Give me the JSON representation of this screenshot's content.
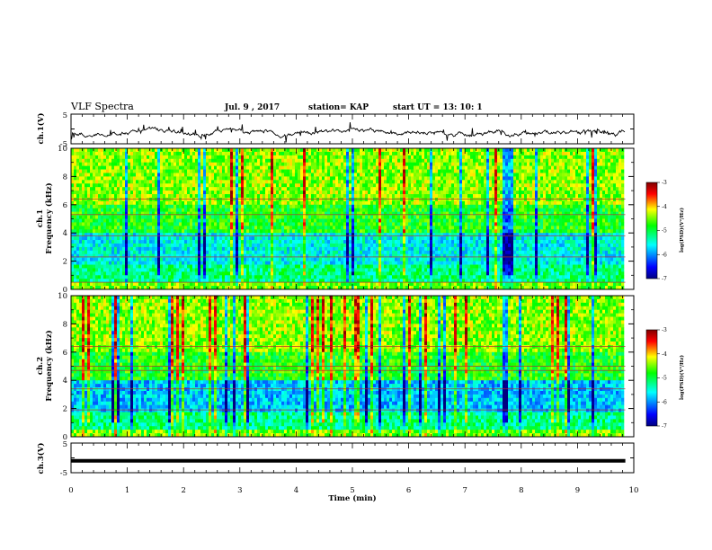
{
  "header": {
    "title": "VLF Spectra",
    "date": "Jul. 9 , 2017",
    "station": "station= KAP",
    "start": "start UT = 13: 10: 1"
  },
  "chart_data": [
    {
      "type": "line",
      "name": "ch1-waveform",
      "ylabel": "ch.1(V)",
      "ylim": [
        -5,
        5
      ],
      "yticks": [
        "5",
        "-5"
      ],
      "xlim": [
        0,
        10
      ],
      "xdata_end": 9.85
    },
    {
      "type": "heatmap",
      "name": "ch1-spectrogram",
      "ylabel": "ch.1\nFrequency (kHz)",
      "ylim": [
        0,
        10
      ],
      "yticks": [
        "0",
        "2",
        "4",
        "6",
        "8",
        "10"
      ],
      "xlim": [
        0,
        10
      ],
      "xdata_end": 9.85,
      "colorbar": {
        "label": "log(PSD)(V²/Hz)",
        "range": [
          -7,
          -3
        ],
        "ticks": [
          "-3",
          "-4",
          "-5",
          "-6",
          "-7"
        ]
      }
    },
    {
      "type": "heatmap",
      "name": "ch2-spectrogram",
      "ylabel": "ch.2\nFrequency (kHz)",
      "ylim": [
        0,
        10
      ],
      "yticks": [
        "0",
        "2",
        "4",
        "6",
        "8",
        "10"
      ],
      "xlim": [
        0,
        10
      ],
      "xdata_end": 9.85,
      "colorbar": {
        "label": "log(PSD)(V²/Hz)",
        "range": [
          -7,
          -3
        ],
        "ticks": [
          "-3",
          "-4",
          "-5",
          "-6",
          "-7"
        ]
      }
    },
    {
      "type": "line",
      "name": "ch3-waveform",
      "ylabel": "ch.3(V)",
      "ylim": [
        -5,
        5
      ],
      "yticks": [
        "5",
        "-5"
      ],
      "xlim": [
        0,
        10
      ],
      "xdata_end": 9.85,
      "value": -1
    }
  ],
  "xaxis": {
    "label": "Time (min)",
    "ticks": [
      "0",
      "1",
      "2",
      "3",
      "4",
      "5",
      "6",
      "7",
      "8",
      "9",
      "10"
    ]
  },
  "colors": {
    "scale": [
      "#000080",
      "#0000ff",
      "#00ffff",
      "#00ff00",
      "#ffff00",
      "#ff0000",
      "#800000"
    ]
  }
}
